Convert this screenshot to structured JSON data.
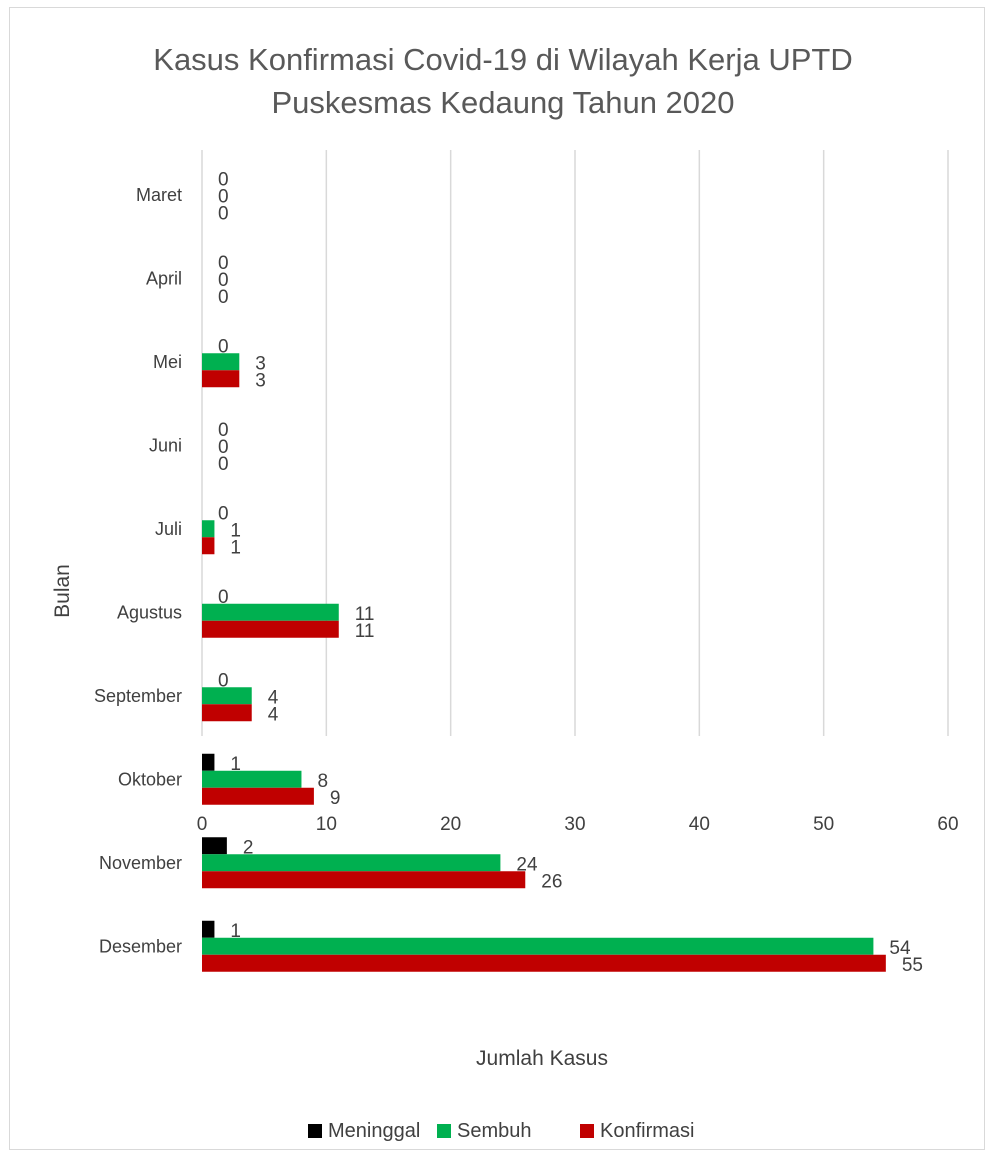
{
  "chart_data": {
    "type": "bar",
    "orientation": "horizontal",
    "title": "Kasus Konfirmasi Covid-19 di Wilayah Kerja UPTD Puskesmas Kedaung Tahun 2020",
    "title_lines": [
      "Kasus Konfirmasi Covid-19 di Wilayah Kerja UPTD",
      "Puskesmas Kedaung Tahun 2020"
    ],
    "xlabel": "Jumlah Kasus",
    "ylabel": "Bulan",
    "xlim": [
      0,
      60
    ],
    "xticks": [
      0,
      10,
      20,
      30,
      40,
      50,
      60
    ],
    "grid": true,
    "legend_position": "bottom",
    "categories": [
      "Maret",
      "April",
      "Mei",
      "Juni",
      "Juli",
      "Agustus",
      "September",
      "Oktober",
      "November",
      "Desember"
    ],
    "series": [
      {
        "name": "Meninggal",
        "color": "#000000",
        "values": [
          0,
          0,
          0,
          0,
          0,
          0,
          0,
          1,
          2,
          1
        ]
      },
      {
        "name": "Sembuh",
        "color": "#00b050",
        "values": [
          0,
          0,
          3,
          0,
          1,
          11,
          4,
          8,
          24,
          54
        ]
      },
      {
        "name": "Konfirmasi",
        "color": "#c00000",
        "values": [
          0,
          0,
          3,
          0,
          1,
          11,
          4,
          9,
          26,
          55
        ]
      }
    ]
  },
  "colors": {
    "gridline": "#d9d9d9",
    "text": "#404040",
    "title": "#595959"
  }
}
